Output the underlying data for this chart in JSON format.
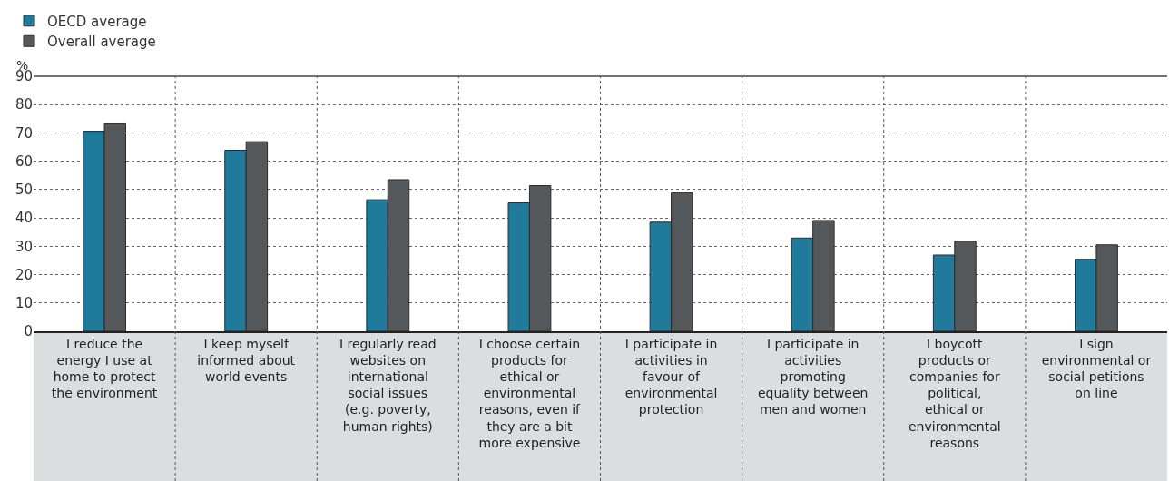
{
  "chart_data": {
    "type": "bar",
    "ylabel": "%",
    "categories": [
      "I reduce the energy I use at home to protect the environment",
      "I keep myself informed about world events",
      "I regularly read websites on international social issues (e.g. poverty, human rights)",
      "I choose certain products for ethical or environmental reasons, even if they are a bit more expensive",
      "I participate in activities in favour of environmental protection",
      "I participate in activities promoting equality between men and women",
      "I boycott products or companies for political, ethical or environmental reasons",
      "I sign environmental or social petitions on line"
    ],
    "series": [
      {
        "name": "OECD average",
        "color": "#1f7a9b",
        "values": [
          70.6,
          63.9,
          46.4,
          45.3,
          38.5,
          32.9,
          26.9,
          25.4
        ]
      },
      {
        "name": "Overall average",
        "color": "#54585a",
        "values": [
          73.2,
          66.9,
          53.5,
          51.4,
          48.8,
          39.1,
          31.8,
          30.5
        ]
      }
    ],
    "ylim": [
      0,
      90
    ],
    "yticks": [
      0,
      10,
      20,
      30,
      40,
      50,
      60,
      70,
      80,
      90
    ],
    "grid": "y",
    "legend": "top left"
  }
}
